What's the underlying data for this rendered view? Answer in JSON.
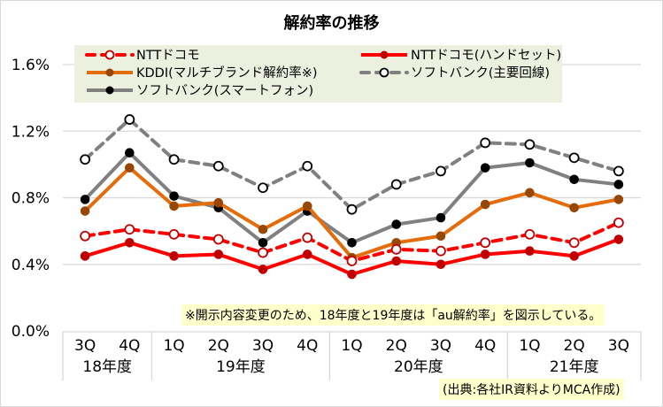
{
  "chart_data": {
    "type": "line",
    "title": "解約率の推移",
    "xlabel": "",
    "ylabel": "",
    "ylim": [
      0,
      1.6
    ],
    "yticks": [
      0.0,
      0.4,
      0.8,
      1.2,
      1.6
    ],
    "ytick_labels": [
      "0.0%",
      "0.4%",
      "0.8%",
      "1.2%",
      "1.6%"
    ],
    "grid": true,
    "legend_position": "top",
    "categories": [
      "3Q",
      "4Q",
      "1Q",
      "2Q",
      "3Q",
      "4Q",
      "1Q",
      "2Q",
      "3Q",
      "4Q",
      "1Q",
      "2Q",
      "3Q"
    ],
    "category_groups": [
      {
        "label": "18年度",
        "count": 2
      },
      {
        "label": "19年度",
        "count": 4
      },
      {
        "label": "20年度",
        "count": 4
      },
      {
        "label": "21年度",
        "count": 3
      }
    ],
    "series": [
      {
        "name": "NTTドコモ",
        "color": "#ff0000",
        "marker_color": "#c00000",
        "style": "dashed",
        "marker": "open-circle",
        "values": [
          0.57,
          0.61,
          0.58,
          0.55,
          0.47,
          0.56,
          0.42,
          0.49,
          0.48,
          0.53,
          0.58,
          0.53,
          0.65
        ]
      },
      {
        "name": "NTTドコモ(ハンドセット)",
        "color": "#ff0000",
        "marker_color": "#c00000",
        "style": "solid",
        "marker": "filled-circle",
        "values": [
          0.45,
          0.53,
          0.45,
          0.46,
          0.37,
          0.46,
          0.34,
          0.42,
          0.4,
          0.46,
          0.48,
          0.45,
          0.55
        ]
      },
      {
        "name": "KDDI(マルチブランド解約率※)",
        "color": "#e46c0a",
        "marker_color": "#974806",
        "style": "solid",
        "marker": "filled-circle",
        "values": [
          0.72,
          0.98,
          0.75,
          0.77,
          0.61,
          0.75,
          0.44,
          0.53,
          0.57,
          0.76,
          0.83,
          0.74,
          0.79
        ]
      },
      {
        "name": "ソフトバンク(主要回線)",
        "color": "#808080",
        "marker_color": "#000000",
        "style": "dashed",
        "marker": "open-circle",
        "values": [
          1.03,
          1.27,
          1.03,
          0.99,
          0.86,
          0.99,
          0.73,
          0.88,
          0.96,
          1.13,
          1.12,
          1.04,
          0.96
        ]
      },
      {
        "name": "ソフトバンク(スマートフォン)",
        "color": "#808080",
        "marker_color": "#000000",
        "style": "solid",
        "marker": "filled-circle",
        "values": [
          0.79,
          1.07,
          0.81,
          0.74,
          0.53,
          0.72,
          0.53,
          0.64,
          0.68,
          0.98,
          1.01,
          0.91,
          0.88
        ]
      }
    ],
    "annotations": [
      "※開示内容変更のため、18年度と19年度は「au解約率」を図示している。",
      "(出典:各社IR資料よりMCA作成)"
    ]
  },
  "colors": {
    "legend_background": "#ebf1de",
    "note_background": "#ffffcc",
    "grid": "#d9d9d9"
  }
}
